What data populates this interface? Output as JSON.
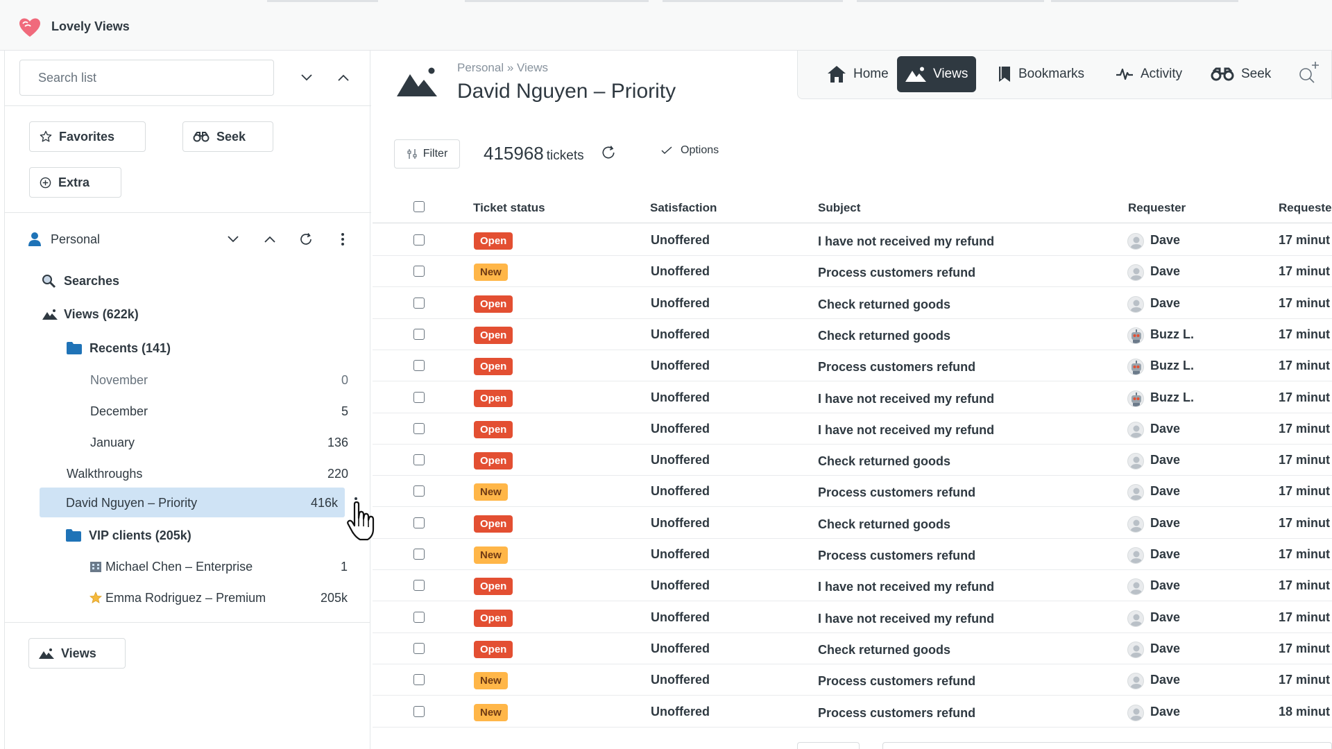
{
  "app": {
    "title": "Lovely Views"
  },
  "sidebar": {
    "search_placeholder": "Search list",
    "quick_buttons": {
      "favorites": "Favorites",
      "seek": "Seek",
      "extra": "Extra"
    },
    "section": {
      "label": "Personal"
    },
    "tree": {
      "searches": "Searches",
      "views": "Views (622k)",
      "recents": "Recents (141)",
      "months": [
        {
          "label": "November",
          "count": "0"
        },
        {
          "label": "December",
          "count": "5"
        },
        {
          "label": "January",
          "count": "136"
        }
      ],
      "walkthroughs": {
        "label": "Walkthroughs",
        "count": "220"
      },
      "selected": {
        "label": "David Nguyen – Priority",
        "count": "416k"
      },
      "vip": "VIP clients (205k)",
      "vip_children": [
        {
          "label": "Michael Chen – Enterprise",
          "count": "1",
          "icon": "building-icon"
        },
        {
          "label": "Emma Rodriguez – Premium",
          "count": "205k",
          "icon": "star-icon"
        }
      ]
    },
    "footer_button": "Views"
  },
  "header": {
    "breadcrumb": "Personal » Views",
    "title": "David Nguyen – Priority"
  },
  "nav": {
    "items": [
      {
        "label": "Home",
        "icon": "home-icon"
      },
      {
        "label": "Views",
        "icon": "mountain-icon",
        "active": true
      },
      {
        "label": "Bookmarks",
        "icon": "bookmark-icon"
      },
      {
        "label": "Activity",
        "icon": "activity-icon"
      },
      {
        "label": "Seek",
        "icon": "binoculars-icon"
      }
    ]
  },
  "toolbar": {
    "filter": "Filter",
    "count": "415968",
    "count_unit": "tickets",
    "options": "Options"
  },
  "table": {
    "columns": [
      "Ticket status",
      "Satisfaction",
      "Subject",
      "Requester",
      "Requeste"
    ],
    "rows": [
      {
        "status": "Open",
        "satisfaction": "Unoffered",
        "subject": "I have not received my refund",
        "requester": "Dave",
        "avatar": "default",
        "time": "17 minut"
      },
      {
        "status": "New",
        "satisfaction": "Unoffered",
        "subject": "Process customers refund",
        "requester": "Dave",
        "avatar": "default",
        "time": "17 minut"
      },
      {
        "status": "Open",
        "satisfaction": "Unoffered",
        "subject": "Check returned goods",
        "requester": "Dave",
        "avatar": "default",
        "time": "17 minut"
      },
      {
        "status": "Open",
        "satisfaction": "Unoffered",
        "subject": "Check returned goods",
        "requester": "Buzz L.",
        "avatar": "robot",
        "time": "17 minut"
      },
      {
        "status": "Open",
        "satisfaction": "Unoffered",
        "subject": "Process customers refund",
        "requester": "Buzz L.",
        "avatar": "robot",
        "time": "17 minut"
      },
      {
        "status": "Open",
        "satisfaction": "Unoffered",
        "subject": "I have not received my refund",
        "requester": "Buzz L.",
        "avatar": "robot",
        "time": "17 minut"
      },
      {
        "status": "Open",
        "satisfaction": "Unoffered",
        "subject": "I have not received my refund",
        "requester": "Dave",
        "avatar": "default",
        "time": "17 minut"
      },
      {
        "status": "Open",
        "satisfaction": "Unoffered",
        "subject": "Check returned goods",
        "requester": "Dave",
        "avatar": "default",
        "time": "17 minut"
      },
      {
        "status": "New",
        "satisfaction": "Unoffered",
        "subject": "Process customers refund",
        "requester": "Dave",
        "avatar": "default",
        "time": "17 minut"
      },
      {
        "status": "Open",
        "satisfaction": "Unoffered",
        "subject": "Check returned goods",
        "requester": "Dave",
        "avatar": "default",
        "time": "17 minut"
      },
      {
        "status": "New",
        "satisfaction": "Unoffered",
        "subject": "Process customers refund",
        "requester": "Dave",
        "avatar": "default",
        "time": "17 minut"
      },
      {
        "status": "Open",
        "satisfaction": "Unoffered",
        "subject": "I have not received my refund",
        "requester": "Dave",
        "avatar": "default",
        "time": "17 minut"
      },
      {
        "status": "Open",
        "satisfaction": "Unoffered",
        "subject": "I have not received my refund",
        "requester": "Dave",
        "avatar": "default",
        "time": "17 minut"
      },
      {
        "status": "Open",
        "satisfaction": "Unoffered",
        "subject": "Check returned goods",
        "requester": "Dave",
        "avatar": "default",
        "time": "17 minut"
      },
      {
        "status": "New",
        "satisfaction": "Unoffered",
        "subject": "Process customers refund",
        "requester": "Dave",
        "avatar": "default",
        "time": "17 minut"
      },
      {
        "status": "New",
        "satisfaction": "Unoffered",
        "subject": "Process customers refund",
        "requester": "Dave",
        "avatar": "default",
        "time": "18 minut"
      }
    ]
  },
  "colors": {
    "open_badge": "#e34f32",
    "new_badge": "#ffb648",
    "selected_row": "#cfe3f5",
    "active_nav": "#2f3941",
    "folder": "#1f73b7"
  }
}
